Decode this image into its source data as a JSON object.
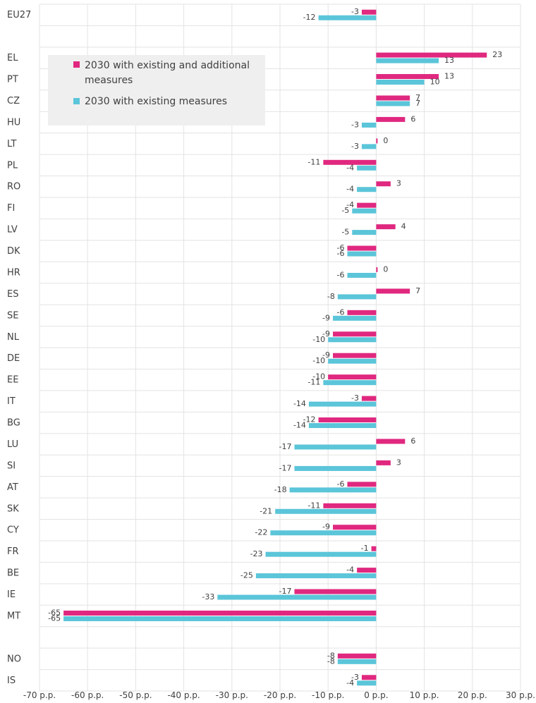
{
  "chart_data": {
    "type": "bar",
    "orientation": "horizontal",
    "title": "",
    "xlabel": "",
    "ylabel": "",
    "xlim": [
      -70,
      30
    ],
    "tick_values": [
      -70,
      -60,
      -50,
      -40,
      -30,
      -20,
      -10,
      0,
      10,
      20,
      30
    ],
    "tick_labels": [
      "-70 p.p.",
      "-60 p.p.",
      "-50 p.p.",
      "-40 p.p.",
      "-30 p.p.",
      "-20 p.p.",
      "-10 p.p.",
      "0 p.p.",
      "10 p.p.",
      "20 p.p.",
      "30 p.p."
    ],
    "grid": true,
    "legend_position": "top-left",
    "categories": [
      "EU27",
      "",
      "EL",
      "PT",
      "CZ",
      "HU",
      "LT",
      "PL",
      "RO",
      "FI",
      "LV",
      "DK",
      "HR",
      "ES",
      "SE",
      "NL",
      "DE",
      "EE",
      "IT",
      "BG",
      "LU",
      "SI",
      "AT",
      "SK",
      "CY",
      "FR",
      "BE",
      "IE",
      "MT",
      "",
      "NO",
      "IS"
    ],
    "series": [
      {
        "name": "2030 with existing and additional measures",
        "color": "#e0287f",
        "values": [
          -3,
          null,
          23,
          13,
          7,
          6,
          0,
          -11,
          3,
          -4,
          4,
          -6,
          0,
          7,
          -6,
          -9,
          -9,
          -10,
          -3,
          -12,
          6,
          3,
          -6,
          -11,
          -9,
          -1,
          -4,
          -17,
          -65,
          null,
          -8,
          -3
        ],
        "labels": [
          "-3",
          "",
          "23",
          "13",
          "7",
          "6",
          "0",
          "-11",
          "3",
          "-4",
          "4",
          "-6",
          "0",
          "7",
          "-6",
          "-9",
          "-9",
          "-10",
          "-3",
          "-12",
          "6",
          "3",
          "-6",
          "-11",
          "-9",
          "-1",
          "-4",
          "-17",
          "-65",
          "",
          "-8",
          "-3"
        ]
      },
      {
        "name": "2030 with existing measures",
        "color": "#5bc5d9",
        "values": [
          -12,
          null,
          13,
          10,
          7,
          -3,
          -3,
          -4,
          -4,
          -5,
          -5,
          -6,
          -6,
          -8,
          -9,
          -10,
          -10,
          -11,
          -14,
          -14,
          -17,
          -17,
          -18,
          -21,
          -22,
          -23,
          -25,
          -33,
          -65,
          null,
          -8,
          -4
        ],
        "labels": [
          "-12",
          "",
          "13",
          "10",
          "7",
          "-3",
          "-3",
          "-4",
          "-4",
          "-5",
          "-5",
          "-6",
          "-6",
          "-8",
          "-9",
          "-10",
          "-10",
          "-11",
          "-14",
          "-14",
          "-17",
          "-17",
          "-18",
          "-21",
          "-22",
          "-23",
          "-25",
          "-33",
          "-65",
          "",
          "-8",
          "-4"
        ]
      }
    ]
  }
}
